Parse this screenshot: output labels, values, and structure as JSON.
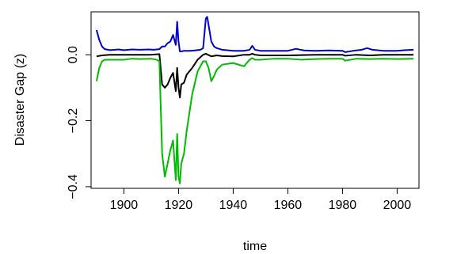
{
  "chart_data": {
    "type": "line",
    "title": "",
    "xlabel": "time",
    "ylabel": "Disaster Gap (z)",
    "xlim": [
      1888,
      2008
    ],
    "ylim": [
      -0.405,
      0.13
    ],
    "x_ticks": [
      1900,
      1920,
      1940,
      1960,
      1980,
      2000
    ],
    "x_tick_labels": [
      "1900",
      "1920",
      "1940",
      "1960",
      "1980",
      "2000"
    ],
    "y_ticks": [
      -0.4,
      -0.2,
      0.0
    ],
    "y_tick_labels": [
      "−0.4",
      "−0.2",
      "0.0"
    ],
    "grid": false,
    "legend": "none",
    "series": [
      {
        "color": "#0000cc",
        "x": [
          1890,
          1891,
          1892,
          1893,
          1895,
          1898,
          1900,
          1903,
          1906,
          1909,
          1911,
          1913,
          1914,
          1915,
          1916,
          1917,
          1918,
          1919,
          1919.5,
          1920,
          1920.5,
          1921,
          1922,
          1924,
          1926,
          1928,
          1929,
          1930,
          1930.5,
          1931,
          1932,
          1933,
          1934,
          1936,
          1940,
          1944,
          1946,
          1947,
          1948,
          1950,
          1955,
          1960,
          1963,
          1966,
          1970,
          1975,
          1980,
          1981,
          1984,
          1987,
          1989,
          1991,
          1995,
          2000,
          2003,
          2006
        ],
        "y": [
          0.075,
          0.045,
          0.025,
          0.017,
          0.014,
          0.016,
          0.014,
          0.016,
          0.015,
          0.016,
          0.015,
          0.017,
          0.025,
          0.025,
          0.035,
          0.04,
          0.06,
          0.03,
          0.1,
          0.04,
          0.01,
          0.01,
          0.012,
          0.012,
          0.013,
          0.015,
          0.02,
          0.11,
          0.115,
          0.09,
          0.04,
          0.025,
          0.02,
          0.015,
          0.012,
          0.012,
          0.015,
          0.027,
          0.015,
          0.012,
          0.012,
          0.012,
          0.018,
          0.013,
          0.012,
          0.013,
          0.012,
          0.008,
          0.012,
          0.015,
          0.02,
          0.015,
          0.012,
          0.012,
          0.014,
          0.015
        ]
      },
      {
        "color": "#000000",
        "x": [
          1890,
          1892,
          1895,
          1900,
          1905,
          1910,
          1913,
          1914,
          1915,
          1916,
          1917,
          1918,
          1919,
          1919.5,
          1920,
          1920.5,
          1921,
          1922,
          1923,
          1925,
          1927,
          1929,
          1930,
          1932,
          1934,
          1936,
          1940,
          1944,
          1946,
          1947,
          1948,
          1950,
          1960,
          1970,
          1980,
          1981,
          1985,
          1990,
          1995,
          2000,
          2006
        ],
        "y": [
          -0.005,
          -0.002,
          0.0,
          0.0,
          0.0,
          0.0,
          0.002,
          -0.09,
          -0.1,
          -0.09,
          -0.07,
          -0.055,
          -0.11,
          -0.04,
          -0.1,
          -0.13,
          -0.09,
          -0.085,
          -0.06,
          -0.04,
          -0.015,
          0.0,
          0.003,
          -0.005,
          -0.002,
          -0.004,
          -0.005,
          0.0,
          0.0,
          0.003,
          0.0,
          -0.002,
          -0.002,
          0.0,
          0.0,
          -0.003,
          0.0,
          -0.002,
          0.0,
          0.0,
          0.0
        ]
      },
      {
        "color": "#00bb00",
        "x": [
          1890,
          1891,
          1892,
          1893,
          1895,
          1900,
          1903,
          1906,
          1910,
          1912,
          1913,
          1914,
          1915,
          1916,
          1917,
          1918,
          1919,
          1919.5,
          1920,
          1920.5,
          1921,
          1922,
          1923,
          1925,
          1927,
          1929,
          1930,
          1931,
          1932,
          1933,
          1934,
          1936,
          1940,
          1944,
          1946,
          1947,
          1948,
          1950,
          1955,
          1960,
          1965,
          1970,
          1975,
          1980,
          1981,
          1985,
          1990,
          1995,
          2000,
          2006
        ],
        "y": [
          -0.08,
          -0.04,
          -0.02,
          -0.015,
          -0.015,
          -0.015,
          -0.012,
          -0.013,
          -0.012,
          -0.015,
          -0.02,
          -0.3,
          -0.37,
          -0.33,
          -0.29,
          -0.26,
          -0.38,
          -0.24,
          -0.37,
          -0.39,
          -0.33,
          -0.3,
          -0.23,
          -0.12,
          -0.05,
          -0.02,
          -0.02,
          -0.04,
          -0.08,
          -0.065,
          -0.045,
          -0.03,
          -0.025,
          -0.035,
          -0.015,
          -0.01,
          -0.015,
          -0.015,
          -0.012,
          -0.012,
          -0.015,
          -0.013,
          -0.012,
          -0.012,
          -0.018,
          -0.012,
          -0.013,
          -0.012,
          -0.013,
          -0.012
        ]
      }
    ]
  }
}
